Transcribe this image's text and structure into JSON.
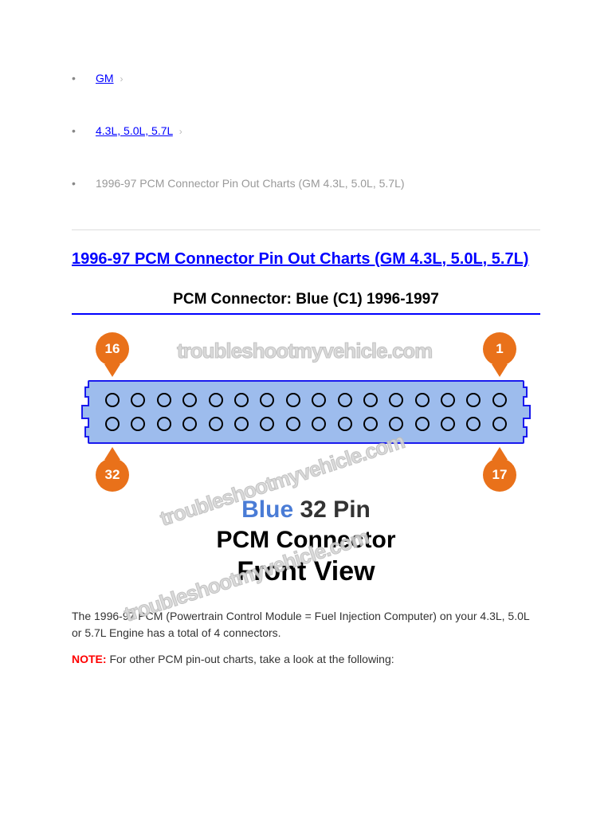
{
  "breadcrumb": {
    "items": [
      {
        "label": "GM",
        "link": true
      },
      {
        "label": "4.3L, 5.0L, 5.7L",
        "link": true
      },
      {
        "label": "1996-97 PCM Connector Pin Out Charts (GM 4.3L, 5.0L, 5.7L)",
        "link": false
      }
    ],
    "chevron": "›"
  },
  "title": "1996-97 PCM Connector Pin Out Charts (GM 4.3L, 5.0L, 5.7L)",
  "subtitle": "PCM Connector: Blue (C1) 1996-1997",
  "diagram": {
    "watermark_text": "troubleshootmyvehicle.com",
    "markers": {
      "top_left": {
        "num": "16",
        "color": "#e9711a"
      },
      "top_right": {
        "num": "1",
        "color": "#e9711a"
      },
      "bot_left": {
        "num": "32",
        "color": "#e9711a"
      },
      "bot_right": {
        "num": "17",
        "color": "#e9711a"
      }
    },
    "connector": {
      "fill": "#9dbced",
      "stroke": "#1a1aee",
      "pin_stroke": "#000000",
      "pins_per_row": 16,
      "rows": 2
    },
    "caption": {
      "blue_word": "Blue",
      "blue_color": "#4a7cd6",
      "rest_line1": " 32 Pin",
      "line2": "PCM Connector",
      "line3": "Front View"
    }
  },
  "body": {
    "para1": "The 1996-97 PCM (Powertrain Control Module = Fuel Injection Computer) on your 4.3L, 5.0L or 5.7L Engine has a total of 4 connectors.",
    "note_label": "NOTE:",
    "note_text": " For other PCM pin-out charts, take a look at the following:"
  },
  "colors": {
    "link": "#0000ff",
    "muted": "#999999",
    "note": "#ff0000"
  }
}
